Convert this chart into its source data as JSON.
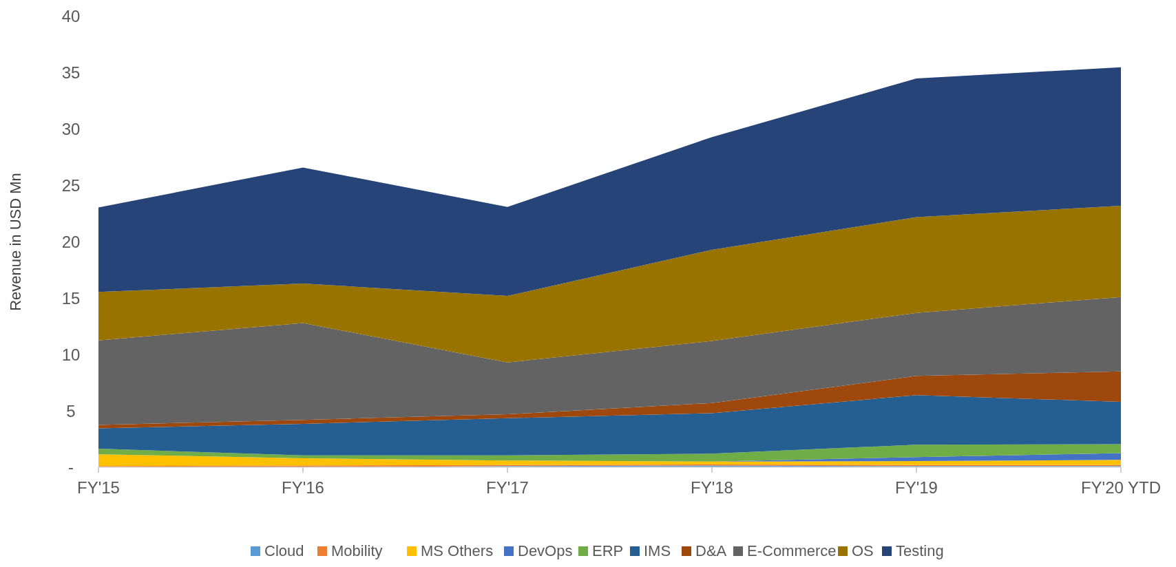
{
  "chart_data": {
    "type": "area",
    "stacked": true,
    "ylabel": "Revenue in  USD Mn",
    "categories": [
      "FY'15",
      "FY'16",
      "FY'17",
      "FY'18",
      "FY'19",
      "FY'20 YTD"
    ],
    "ylim": [
      0,
      40
    ],
    "yticks": [
      {
        "value": 0,
        "label": "-"
      },
      5,
      10,
      15,
      20,
      25,
      30,
      35,
      40
    ],
    "grid": false,
    "legend": "bottom",
    "series": [
      {
        "name": "Cloud",
        "color": "#5b9bd5",
        "values": [
          0,
          0,
          0.1,
          0.15,
          0.1,
          0.1
        ]
      },
      {
        "name": "Mobility",
        "color": "#ed7d31",
        "values": [
          0.1,
          0.15,
          0.1,
          0.1,
          0.1,
          0.1
        ]
      },
      {
        "name": "MS Others",
        "color": "#ffc000",
        "values": [
          1.05,
          0.65,
          0.4,
          0.25,
          0.35,
          0.45
        ]
      },
      {
        "name": "DevOps",
        "color": "#4472c4",
        "values": [
          0,
          0,
          0,
          0,
          0.35,
          0.6
        ]
      },
      {
        "name": "ERP",
        "color": "#70ad47",
        "values": [
          0.5,
          0.25,
          0.45,
          0.7,
          1.1,
          0.8
        ]
      },
      {
        "name": "IMS",
        "color": "#255e91",
        "values": [
          1.8,
          2.8,
          3.3,
          3.6,
          4.4,
          3.75
        ]
      },
      {
        "name": "D&A",
        "color": "#9e480e",
        "values": [
          0.3,
          0.35,
          0.35,
          0.9,
          1.7,
          2.7
        ]
      },
      {
        "name": "E-Commerce",
        "color": "#636363",
        "values": [
          7.5,
          8.6,
          4.6,
          5.5,
          5.6,
          6.6
        ]
      },
      {
        "name": "OS",
        "color": "#997300",
        "values": [
          4.3,
          3.5,
          5.9,
          8.1,
          8.5,
          8.1
        ]
      },
      {
        "name": "Testing",
        "color": "#264478",
        "values": [
          7.5,
          10.3,
          7.9,
          10.0,
          12.3,
          12.3
        ]
      }
    ]
  }
}
